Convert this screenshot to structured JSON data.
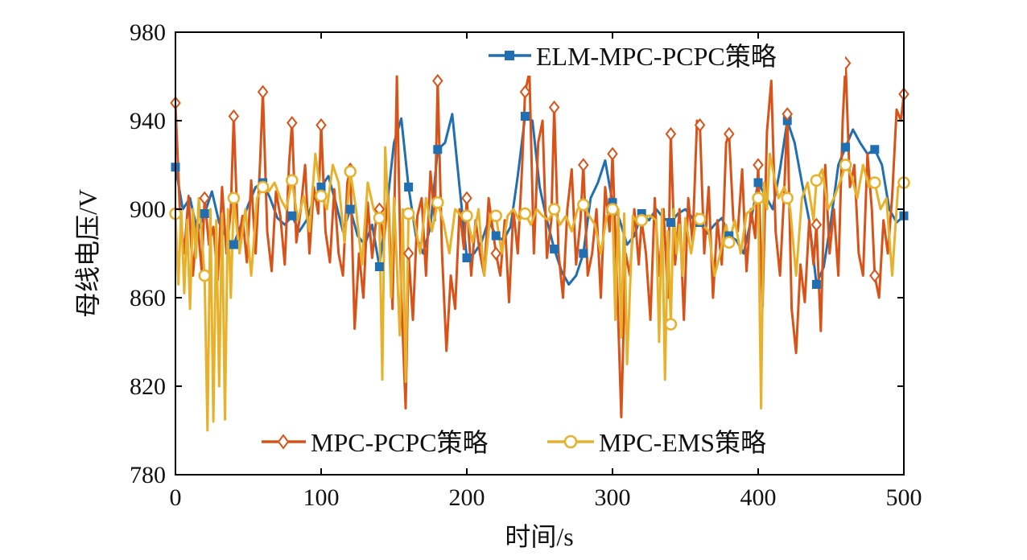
{
  "colors": {
    "elm": "#1f6fb2",
    "pcpc": "#d95319",
    "ems": "#e8b12b",
    "axis": "#000000"
  },
  "chart_data": {
    "type": "line",
    "xlabel": "时间/s",
    "ylabel": "母线电压/V",
    "xlim": [
      0,
      500
    ],
    "ylim": [
      780,
      980
    ],
    "xticks": [
      0,
      100,
      200,
      300,
      400,
      500
    ],
    "yticks": [
      780,
      820,
      860,
      900,
      940,
      980
    ],
    "grid": false,
    "legend": [
      {
        "series": "ELM-MPC-PCPC策略",
        "placement": "top-right"
      },
      {
        "series": "MPC-PCPC策略",
        "placement": "bottom"
      },
      {
        "series": "MPC-EMS策略",
        "placement": "bottom"
      }
    ],
    "series": [
      {
        "name": "ELM-MPC-PCPC策略",
        "color_key": "elm",
        "marker": "square",
        "marker_every": 20,
        "x": [
          0,
          5,
          10,
          15,
          20,
          25,
          30,
          35,
          40,
          45,
          50,
          55,
          60,
          65,
          70,
          75,
          80,
          85,
          90,
          95,
          100,
          105,
          110,
          115,
          120,
          125,
          130,
          135,
          140,
          145,
          150,
          155,
          160,
          165,
          170,
          175,
          180,
          185,
          190,
          195,
          200,
          205,
          210,
          215,
          220,
          225,
          230,
          235,
          240,
          245,
          250,
          255,
          260,
          265,
          270,
          275,
          280,
          285,
          290,
          295,
          300,
          305,
          310,
          315,
          320,
          325,
          330,
          335,
          340,
          345,
          350,
          355,
          360,
          365,
          370,
          375,
          380,
          385,
          390,
          395,
          400,
          405,
          410,
          415,
          420,
          425,
          430,
          435,
          440,
          445,
          450,
          455,
          460,
          465,
          470,
          475,
          480,
          485,
          490,
          495,
          500
        ],
        "y": [
          919,
          900,
          905,
          890,
          898,
          908,
          894,
          887,
          884,
          893,
          902,
          910,
          912,
          905,
          896,
          893,
          897,
          890,
          895,
          905,
          910,
          915,
          903,
          890,
          900,
          888,
          884,
          893,
          874,
          900,
          930,
          941,
          910,
          888,
          880,
          892,
          927,
          930,
          943,
          910,
          878,
          880,
          885,
          895,
          888,
          886,
          892,
          915,
          942,
          940,
          910,
          895,
          882,
          872,
          866,
          870,
          880,
          905,
          912,
          922,
          903,
          895,
          884,
          888,
          898,
          895,
          900,
          896,
          894,
          898,
          900,
          896,
          894,
          889,
          893,
          896,
          888,
          886,
          880,
          895,
          912,
          906,
          900,
          918,
          940,
          930,
          912,
          895,
          866,
          874,
          895,
          920,
          928,
          936,
          930,
          925,
          927,
          920,
          900,
          894,
          897
        ]
      },
      {
        "name": "MPC-PCPC策略",
        "color_key": "pcpc",
        "marker": "diamond",
        "marker_every": 20,
        "x": [
          0,
          3,
          6,
          9,
          12,
          15,
          18,
          20,
          23,
          26,
          29,
          32,
          35,
          38,
          40,
          43,
          46,
          49,
          52,
          55,
          58,
          60,
          63,
          66,
          69,
          72,
          75,
          78,
          80,
          83,
          86,
          89,
          92,
          95,
          98,
          100,
          103,
          106,
          109,
          112,
          115,
          118,
          120,
          123,
          126,
          129,
          132,
          135,
          138,
          140,
          143,
          146,
          149,
          152,
          155,
          158,
          160,
          163,
          166,
          169,
          172,
          175,
          178,
          180,
          183,
          186,
          189,
          192,
          195,
          198,
          200,
          203,
          206,
          209,
          212,
          215,
          218,
          220,
          223,
          226,
          229,
          232,
          235,
          238,
          240,
          243,
          246,
          249,
          252,
          255,
          258,
          260,
          263,
          266,
          269,
          272,
          275,
          278,
          280,
          283,
          286,
          289,
          292,
          295,
          298,
          300,
          303,
          306,
          309,
          312,
          315,
          318,
          320,
          323,
          326,
          329,
          332,
          335,
          338,
          340,
          343,
          346,
          349,
          352,
          355,
          358,
          360,
          363,
          366,
          369,
          372,
          375,
          378,
          380,
          383,
          386,
          389,
          392,
          395,
          398,
          400,
          403,
          406,
          409,
          412,
          415,
          418,
          420,
          423,
          426,
          429,
          432,
          435,
          438,
          440,
          443,
          446,
          449,
          452,
          455,
          458,
          460,
          463,
          466,
          469,
          472,
          475,
          478,
          480,
          483,
          486,
          489,
          492,
          495,
          498,
          500
        ],
        "y": [
          948,
          900,
          880,
          906,
          870,
          895,
          872,
          905,
          884,
          892,
          868,
          910,
          880,
          900,
          942,
          884,
          897,
          876,
          913,
          880,
          920,
          953,
          890,
          872,
          908,
          897,
          875,
          921,
          939,
          885,
          900,
          920,
          880,
          910,
          898,
          938,
          890,
          876,
          909,
          880,
          870,
          912,
          918,
          846,
          880,
          860,
          903,
          878,
          897,
          900,
          885,
          906,
          855,
          960,
          860,
          810,
          880,
          850,
          897,
          905,
          870,
          917,
          895,
          958,
          880,
          836,
          870,
          855,
          900,
          882,
          905,
          870,
          895,
          880,
          870,
          905,
          890,
          880,
          870,
          895,
          858,
          900,
          880,
          920,
          953,
          962,
          880,
          930,
          940,
          878,
          895,
          946,
          880,
          860,
          900,
          918,
          875,
          895,
          920,
          870,
          880,
          900,
          860,
          910,
          890,
          925,
          870,
          806,
          880,
          870,
          900,
          875,
          895,
          880,
          850,
          905,
          870,
          900,
          860,
          934,
          875,
          900,
          850,
          905,
          885,
          940,
          938,
          880,
          910,
          860,
          895,
          875,
          930,
          934,
          895,
          890,
          918,
          872,
          900,
          887,
          920,
          856,
          935,
          958,
          890,
          870,
          910,
          943,
          855,
          835,
          875,
          858,
          895,
          875,
          893,
          845,
          920,
          880,
          900,
          870,
          940,
          966,
          910,
          920,
          880,
          870,
          925,
          900,
          870,
          860,
          895,
          880,
          906,
          945,
          940,
          952
        ]
      },
      {
        "name": "MPC-EMS策略",
        "color_key": "ems",
        "marker": "circle",
        "marker_every": 20,
        "x": [
          0,
          2,
          4,
          6,
          8,
          10,
          12,
          14,
          16,
          18,
          20,
          22,
          24,
          26,
          28,
          30,
          32,
          34,
          36,
          38,
          40,
          44,
          48,
          52,
          56,
          60,
          64,
          68,
          72,
          76,
          80,
          84,
          88,
          92,
          96,
          100,
          104,
          108,
          112,
          116,
          120,
          124,
          128,
          132,
          136,
          140,
          142,
          144,
          146,
          148,
          150,
          152,
          154,
          156,
          158,
          160,
          164,
          168,
          172,
          176,
          180,
          184,
          188,
          192,
          196,
          200,
          204,
          208,
          212,
          216,
          220,
          224,
          228,
          232,
          236,
          240,
          244,
          248,
          252,
          256,
          260,
          264,
          268,
          272,
          276,
          280,
          284,
          288,
          292,
          296,
          300,
          302,
          304,
          306,
          308,
          310,
          314,
          318,
          322,
          326,
          330,
          332,
          334,
          336,
          338,
          340,
          342,
          344,
          346,
          348,
          350,
          354,
          358,
          362,
          366,
          370,
          374,
          378,
          380,
          384,
          388,
          392,
          396,
          400,
          402,
          404,
          406,
          408,
          410,
          414,
          418,
          422,
          426,
          430,
          434,
          438,
          440,
          444,
          448,
          452,
          456,
          460,
          464,
          468,
          472,
          476,
          480,
          484,
          488,
          492,
          496,
          500
        ],
        "y": [
          898,
          866,
          900,
          862,
          895,
          855,
          900,
          878,
          905,
          888,
          870,
          800,
          900,
          804,
          895,
          820,
          898,
          805,
          900,
          860,
          905,
          880,
          900,
          870,
          905,
          910,
          908,
          912,
          905,
          900,
          913,
          895,
          906,
          890,
          925,
          906,
          900,
          920,
          912,
          885,
          917,
          900,
          875,
          912,
          900,
          896,
          823,
          928,
          900,
          860,
          905,
          875,
          843,
          900,
          822,
          898,
          895,
          880,
          905,
          890,
          903,
          894,
          880,
          900,
          897,
          897,
          885,
          900,
          870,
          897,
          897,
          880,
          897,
          900,
          895,
          898,
          893,
          900,
          897,
          895,
          900,
          893,
          897,
          890,
          900,
          902,
          897,
          893,
          880,
          897,
          900,
          850,
          900,
          842,
          898,
          830,
          897,
          893,
          897,
          897,
          895,
          840,
          900,
          823,
          890,
          848,
          900,
          880,
          893,
          870,
          896,
          880,
          898,
          893,
          890,
          870,
          880,
          893,
          885,
          895,
          880,
          898,
          900,
          905,
          810,
          912,
          900,
          925,
          918,
          905,
          910,
          900,
          870,
          905,
          912,
          895,
          913,
          918,
          900,
          905,
          912,
          920,
          915,
          905,
          920,
          910,
          912,
          900,
          905,
          870,
          910,
          912
        ]
      }
    ]
  }
}
